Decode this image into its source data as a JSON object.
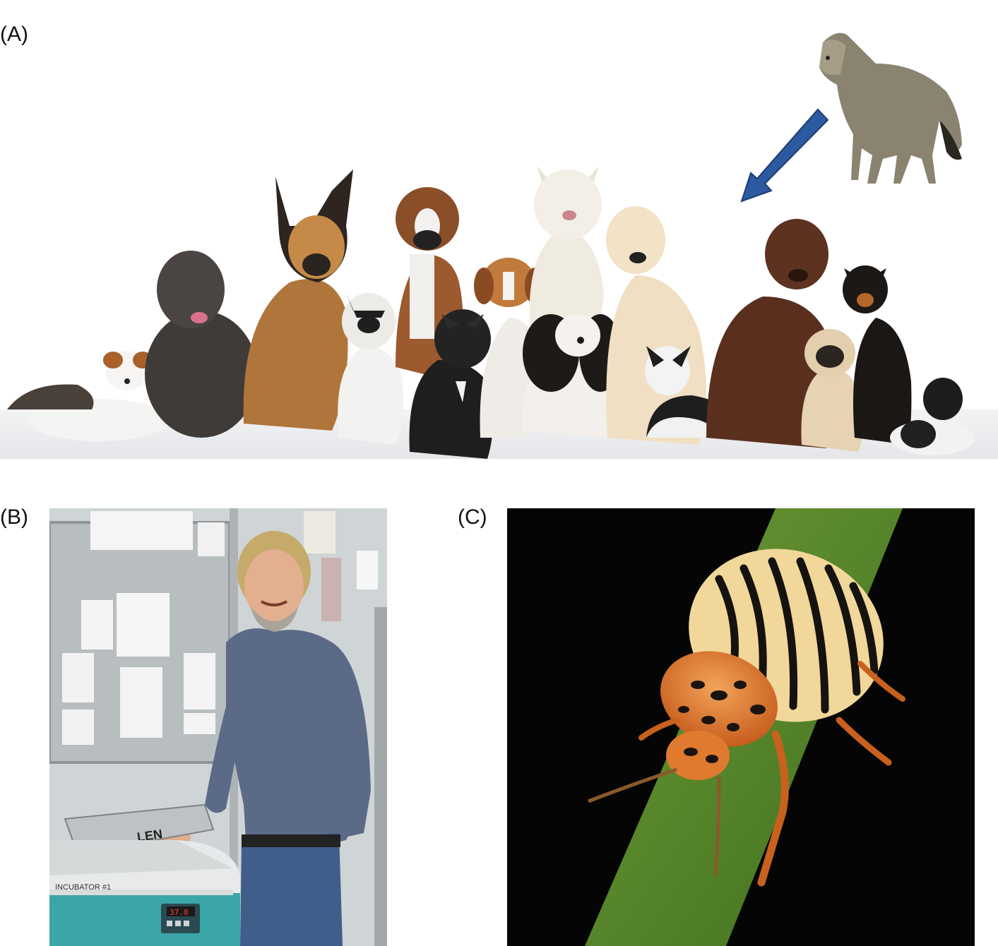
{
  "figure": {
    "panels": [
      {
        "id": "A",
        "label": "(A)",
        "subject": "wolf-and-dog-breeds",
        "arrow_color": "#2c5aa0"
      },
      {
        "id": "B",
        "label": "(B)",
        "subject": "scientist-with-incubator",
        "incubator_label": "INCUBATOR #1",
        "display_reading": "37.0",
        "tray_text": "LEN"
      },
      {
        "id": "C",
        "label": "(C)",
        "subject": "colorado-potato-beetle-on-leaf"
      }
    ]
  }
}
